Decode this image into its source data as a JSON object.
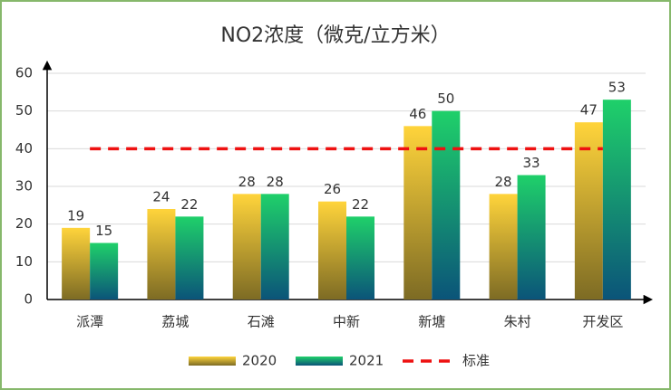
{
  "chart_data": {
    "type": "bar",
    "title": "NO2浓度（微克/立方米）",
    "categories": [
      "派潭",
      "荔城",
      "石滩",
      "中新",
      "新塘",
      "朱村",
      "开发区"
    ],
    "series": [
      {
        "name": "2020",
        "gradient": [
          "#ffd43b",
          "#7d6b24"
        ],
        "values": [
          19,
          24,
          28,
          26,
          46,
          28,
          47
        ]
      },
      {
        "name": "2021",
        "gradient": [
          "#1fd06a",
          "#0b5479"
        ],
        "values": [
          15,
          22,
          28,
          22,
          50,
          33,
          53
        ]
      },
      {
        "name": "标准",
        "type": "line",
        "color": "#ee1111",
        "dashed": true,
        "values": [
          40,
          40,
          40,
          40,
          40,
          40,
          40
        ]
      }
    ],
    "ylim": [
      0,
      60
    ],
    "yticks": [
      0,
      10,
      20,
      30,
      40,
      50,
      60
    ],
    "grid": true,
    "legend": "bottom"
  }
}
